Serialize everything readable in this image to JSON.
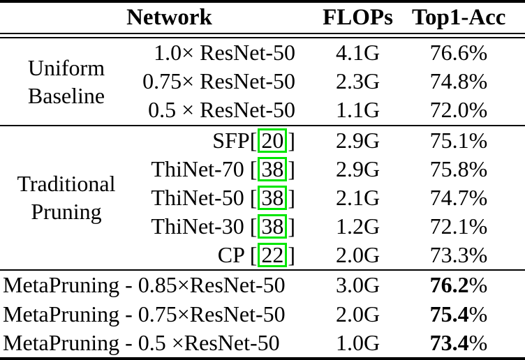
{
  "colors": {
    "citation_box": "#00e600",
    "rule": "#000000",
    "text": "#000000",
    "background": "#ffffff"
  },
  "table": {
    "header": {
      "network": "Network",
      "flops": "FLOPs",
      "top1_acc": "Top1-Acc"
    },
    "sections": [
      {
        "label": "Uniform Baseline",
        "rows": [
          {
            "name_parts": [
              {
                "text": "1.0× ResNet-50",
                "boxed": false
              }
            ],
            "flops": "4.1G",
            "acc_value": "76.6",
            "acc_suffix": "%",
            "acc_bold": false
          },
          {
            "name_parts": [
              {
                "text": "0.75× ResNet-50",
                "boxed": false
              }
            ],
            "flops": "2.3G",
            "acc_value": "74.8",
            "acc_suffix": "%",
            "acc_bold": false
          },
          {
            "name_parts": [
              {
                "text": "0.5 × ResNet-50",
                "boxed": false
              }
            ],
            "flops": "1.1G",
            "acc_value": "72.0",
            "acc_suffix": "%",
            "acc_bold": false
          }
        ]
      },
      {
        "label": "Traditional Pruning",
        "rows": [
          {
            "name_parts": [
              {
                "text": "SFP[",
                "boxed": false
              },
              {
                "text": "20",
                "boxed": true
              },
              {
                "text": "]",
                "boxed": false
              }
            ],
            "flops": "2.9G",
            "acc_value": "75.1",
            "acc_suffix": "%",
            "acc_bold": false
          },
          {
            "name_parts": [
              {
                "text": "ThiNet-70 [",
                "boxed": false
              },
              {
                "text": "38",
                "boxed": true
              },
              {
                "text": "]",
                "boxed": false
              }
            ],
            "flops": "2.9G",
            "acc_value": "75.8",
            "acc_suffix": "%",
            "acc_bold": false
          },
          {
            "name_parts": [
              {
                "text": "ThiNet-50 [",
                "boxed": false
              },
              {
                "text": "38",
                "boxed": true
              },
              {
                "text": "]",
                "boxed": false
              }
            ],
            "flops": "2.1G",
            "acc_value": "74.7",
            "acc_suffix": "%",
            "acc_bold": false
          },
          {
            "name_parts": [
              {
                "text": "ThiNet-30 [",
                "boxed": false
              },
              {
                "text": "38",
                "boxed": true
              },
              {
                "text": "]",
                "boxed": false
              }
            ],
            "flops": "1.2G",
            "acc_value": "72.1",
            "acc_suffix": "%",
            "acc_bold": false
          },
          {
            "name_parts": [
              {
                "text": "CP [",
                "boxed": false
              },
              {
                "text": "22",
                "boxed": true
              },
              {
                "text": "]",
                "boxed": false
              }
            ],
            "flops": "2.0G",
            "acc_value": "73.3",
            "acc_suffix": "%",
            "acc_bold": false
          }
        ]
      },
      {
        "label": null,
        "rows": [
          {
            "name_parts": [
              {
                "text": "MetaPruning - 0.85×ResNet-50",
                "boxed": false
              }
            ],
            "flops": "3.0G",
            "acc_value": "76.2",
            "acc_suffix": "%",
            "acc_bold": true
          },
          {
            "name_parts": [
              {
                "text": "MetaPruning - 0.75×ResNet-50",
                "boxed": false
              }
            ],
            "flops": "2.0G",
            "acc_value": "75.4",
            "acc_suffix": "%",
            "acc_bold": true
          },
          {
            "name_parts": [
              {
                "text": "MetaPruning - 0.5 ×ResNet-50",
                "boxed": false
              }
            ],
            "flops": "1.0G",
            "acc_value": "73.4",
            "acc_suffix": "%",
            "acc_bold": true
          }
        ]
      }
    ]
  }
}
